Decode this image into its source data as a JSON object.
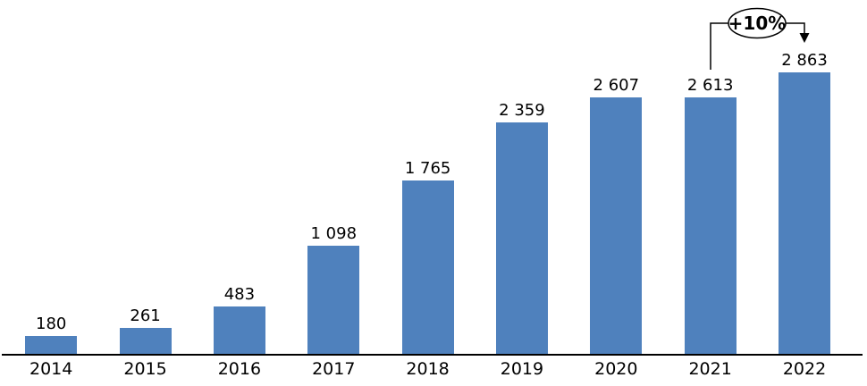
{
  "chart_data": {
    "type": "bar",
    "title": "",
    "xlabel": "",
    "ylabel": "",
    "categories": [
      "2014",
      "2015",
      "2016",
      "2017",
      "2018",
      "2019",
      "2020",
      "2021",
      "2022"
    ],
    "values": [
      180,
      261,
      483,
      1098,
      1765,
      2359,
      2607,
      2613,
      2863
    ],
    "value_labels": [
      "180",
      "261",
      "483",
      "1 098",
      "1 765",
      "2 359",
      "2 607",
      "2 613",
      "2 863"
    ],
    "ylim": [
      0,
      3300
    ],
    "grid": false,
    "legend_position": "none",
    "bar_color": "#4F81BD",
    "axis_color": "#000000",
    "label_color": "#000000",
    "annotation": {
      "label": "+10%",
      "from_category": "2021",
      "to_category": "2022"
    }
  }
}
